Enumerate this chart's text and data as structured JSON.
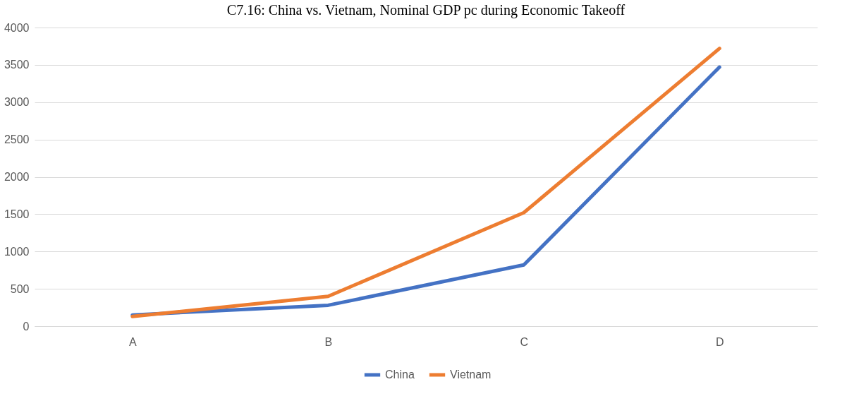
{
  "chart_data": {
    "type": "line",
    "title": "C7.16: China vs. Vietnam, Nominal GDP pc during Economic Takeoff",
    "categories": [
      "A",
      "B",
      "C",
      "D"
    ],
    "series": [
      {
        "name": "China",
        "color": "#4472c4",
        "values": [
          150,
          280,
          820,
          3470
        ]
      },
      {
        "name": "Vietnam",
        "color": "#ed7d31",
        "values": [
          130,
          400,
          1520,
          3720
        ]
      }
    ],
    "ylim": [
      0,
      4000
    ],
    "yticks": [
      0,
      500,
      1000,
      1500,
      2000,
      2500,
      3000,
      3500,
      4000
    ],
    "grid": "y",
    "legend": "bottom",
    "marker": "none",
    "line_style": "solid"
  }
}
